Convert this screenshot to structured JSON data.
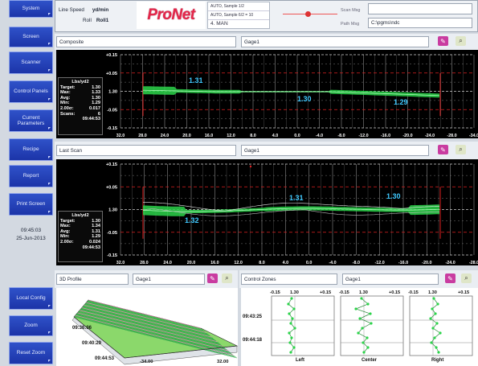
{
  "sidebar": {
    "items": [
      "System",
      "Screen",
      "Scanner",
      "Control Panels",
      "Current Parameters",
      "Recipe",
      "Report",
      "Print Screen",
      "Local Config",
      "Zoom",
      "Reset Zoom"
    ]
  },
  "datetime": {
    "time": "09:45:03",
    "date": "25-Jun-2013"
  },
  "header": {
    "line_speed_label": "Line Speed",
    "line_speed_value": "yd/min",
    "roll_label": "Roll",
    "roll_value": "Roll1",
    "logo": "ProNet",
    "mode_lines": [
      "AUTO, Sample 1/2",
      "AUTO, Sample 6/2 = 10",
      "4. MAN"
    ],
    "scan_label": "Scan Msg",
    "path_label": "Path Msg",
    "path_value": "C:\\pgms\\ndc"
  },
  "panel1": {
    "title": "Composite",
    "gage": "Gage1",
    "y_ticks": [
      "+0.15",
      "+0.05",
      "1.30",
      "-0.05",
      "-0.15"
    ],
    "x_ticks": [
      "32.0",
      "28.0",
      "24.0",
      "20.0",
      "16.0",
      "12.0",
      "8.0",
      "4.0",
      "0.0",
      "-4.0",
      "-8.0",
      "-12.0",
      "-16.0",
      "-20.0",
      "-24.0",
      "-28.0",
      "-34.0"
    ],
    "labels": [
      "1.31",
      "1.30",
      "1.29"
    ],
    "stats": {
      "title": "Lbs/yd2",
      "rows": [
        [
          "Target:",
          "1.30"
        ],
        [
          "Max:",
          "1.33"
        ],
        [
          "Avg:",
          "1.30"
        ],
        [
          "Min:",
          "1.29"
        ],
        [
          "2.00σ:",
          "0.017"
        ],
        [
          "Scans:",
          "6"
        ]
      ],
      "time": "09:44:53"
    }
  },
  "panel2": {
    "title": "Last Scan",
    "gage": "Gage1",
    "y_ticks": [
      "+0.15",
      "+0.05",
      "1.30",
      "-0.05",
      "-0.15"
    ],
    "x_ticks": [
      "32.0",
      "28.0",
      "24.0",
      "20.0",
      "16.0",
      "12.0",
      "8.0",
      "4.0",
      "0.0",
      "-4.0",
      "-8.0",
      "-12.0",
      "-16.0",
      "-20.0",
      "-24.0",
      "-28.0"
    ],
    "labels": [
      "1.31",
      "1.32",
      "1.30"
    ],
    "stats": {
      "title": "Lbs/yd2",
      "rows": [
        [
          "Target:",
          "1.30"
        ],
        [
          "Max:",
          "1.34"
        ],
        [
          "Avg:",
          "1.31"
        ],
        [
          "Min:",
          "1.29"
        ],
        [
          "2.00σ:",
          "0.024"
        ]
      ],
      "time": "09:44:53"
    }
  },
  "profile3d": {
    "title": "3D Profile",
    "gage": "Gage1",
    "times": [
      "09:36:06",
      "09:40:29",
      "09:44:53"
    ],
    "x_left": "-34.00",
    "x_right": "32.00"
  },
  "zones": {
    "title": "Control Zones",
    "gage": "Gage1",
    "scale": [
      "-0.15",
      "1.30",
      "+0.15"
    ],
    "times": [
      "09:43:25",
      "09:44:18"
    ],
    "names": [
      "Left",
      "Center",
      "Right"
    ]
  },
  "colors": {
    "accent": "#2443b8",
    "trend": "#2bd44a",
    "limit": "#e02020",
    "value_label": "#3fc9ff"
  }
}
